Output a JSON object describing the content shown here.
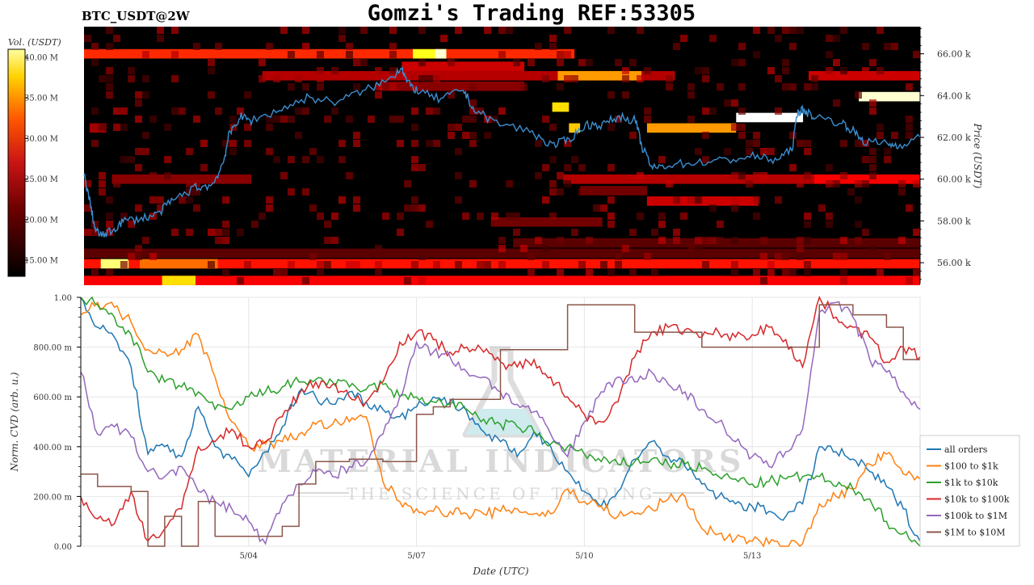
{
  "header": {
    "symbol": "BTC_USDT@2W",
    "title": "Gomzi's Trading REF:53305"
  },
  "watermark": {
    "brand": "MATERIAL INDICATORS",
    "tagline": "THE SCIENCE OF TRADING"
  },
  "chart_data": [
    {
      "type": "heatmap",
      "subtype": "orderbook-liquidity-heatmap-with-price-line",
      "colorbar": {
        "label": "Vol. (USDT)",
        "ticks": [
          "40.00 M",
          "35.00 M",
          "30.00 M",
          "25.00 M",
          "20.00 M",
          "15.00 M"
        ],
        "tick_values": [
          40,
          35,
          30,
          25,
          20,
          15
        ],
        "range": [
          13,
          41
        ],
        "colormap": "hot"
      },
      "y_axis": {
        "label": "Price (USDT)",
        "side": "right",
        "ticks": [
          "66.00 k",
          "64.00 k",
          "62.00 k",
          "60.00 k",
          "58.00 k",
          "56.00 k"
        ],
        "tick_values": [
          66000,
          64000,
          62000,
          60000,
          58000,
          56000
        ],
        "ylim": [
          55000,
          67300
        ]
      },
      "x_range_days": [
        0,
        15
      ],
      "liquidity_bands": [
        {
          "price": 66000,
          "x0": 0.0,
          "x1": 8.8,
          "vol": 26
        },
        {
          "price": 66000,
          "x0": 5.9,
          "x1": 6.5,
          "vol": 36
        },
        {
          "price": 66000,
          "x0": 6.3,
          "x1": 6.5,
          "vol": 40
        },
        {
          "price": 65400,
          "x0": 5.7,
          "x1": 7.9,
          "vol": 22
        },
        {
          "price": 64950,
          "x0": 3.2,
          "x1": 10.6,
          "vol": 21
        },
        {
          "price": 64950,
          "x0": 8.5,
          "x1": 10.0,
          "vol": 31
        },
        {
          "price": 64950,
          "x0": 13.0,
          "x1": 15.0,
          "vol": 22
        },
        {
          "price": 64450,
          "x0": 5.3,
          "x1": 7.9,
          "vol": 19
        },
        {
          "price": 63950,
          "x0": 13.9,
          "x1": 15.0,
          "vol": 40
        },
        {
          "price": 63450,
          "x0": 8.4,
          "x1": 8.7,
          "vol": 34
        },
        {
          "price": 62950,
          "x0": 11.7,
          "x1": 12.9,
          "vol": 41
        },
        {
          "price": 62450,
          "x0": 10.1,
          "x1": 11.7,
          "vol": 31
        },
        {
          "price": 62450,
          "x0": 8.7,
          "x1": 8.9,
          "vol": 33
        },
        {
          "price": 62450,
          "x0": 0.1,
          "x1": 0.4,
          "vol": 20
        },
        {
          "price": 60000,
          "x0": 0.5,
          "x1": 3.0,
          "vol": 19
        },
        {
          "price": 60000,
          "x0": 8.6,
          "x1": 15.0,
          "vol": 21
        },
        {
          "price": 60000,
          "x0": 13.1,
          "x1": 15.0,
          "vol": 24
        },
        {
          "price": 59450,
          "x0": 8.9,
          "x1": 10.1,
          "vol": 18
        },
        {
          "price": 58950,
          "x0": 10.1,
          "x1": 12.1,
          "vol": 22
        },
        {
          "price": 57950,
          "x0": 7.3,
          "x1": 9.3,
          "vol": 18
        },
        {
          "price": 56950,
          "x0": 7.7,
          "x1": 15.0,
          "vol": 17
        },
        {
          "price": 56450,
          "x0": 0.0,
          "x1": 15.0,
          "vol": 17
        },
        {
          "price": 55950,
          "x0": 0.0,
          "x1": 15.0,
          "vol": 25
        },
        {
          "price": 55950,
          "x0": 0.3,
          "x1": 0.8,
          "vol": 38
        },
        {
          "price": 55950,
          "x0": 1.0,
          "x1": 2.4,
          "vol": 29
        },
        {
          "price": 55150,
          "x0": 0.0,
          "x1": 15.0,
          "vol": 24
        },
        {
          "price": 55150,
          "x0": 1.4,
          "x1": 2.0,
          "vol": 34
        }
      ],
      "price_series": {
        "name": "price",
        "color": "#1f77b4",
        "x": [
          0,
          0.1,
          0.2,
          0.3,
          0.5,
          0.7,
          1.0,
          1.3,
          1.6,
          2.0,
          2.3,
          2.5,
          2.6,
          2.8,
          3.0,
          3.5,
          4.0,
          4.5,
          5.0,
          5.5,
          5.7,
          5.8,
          6.0,
          6.4,
          6.8,
          7.0,
          7.4,
          8.0,
          8.4,
          8.7,
          9.0,
          9.3,
          9.6,
          9.9,
          10.0,
          10.2,
          10.5,
          11.0,
          11.5,
          12.0,
          12.4,
          12.7,
          12.8,
          12.9,
          13.1,
          13.6,
          13.8,
          14.0,
          14.4,
          14.6,
          15.0
        ],
        "y": [
          60200,
          59000,
          57600,
          57300,
          57500,
          58000,
          58100,
          58300,
          59000,
          59600,
          59700,
          60800,
          62100,
          63000,
          62800,
          63300,
          63900,
          63700,
          64200,
          64800,
          65400,
          64600,
          64200,
          63800,
          64300,
          63300,
          62700,
          62300,
          61600,
          61900,
          62600,
          62600,
          63000,
          62800,
          61600,
          60500,
          60700,
          60800,
          60900,
          61100,
          60900,
          61400,
          63200,
          63300,
          63000,
          62700,
          62300,
          61800,
          61700,
          61600,
          62000
        ]
      }
    },
    {
      "type": "line",
      "y_axis": {
        "label": "Norm. CVD (arb. u.)",
        "ticks": [
          "1.00",
          "800.00 m",
          "600.00 m",
          "400.00 m",
          "200.00 m",
          "0.00"
        ],
        "tick_values": [
          1.0,
          0.8,
          0.6,
          0.4,
          0.2,
          0.0
        ],
        "ylim": [
          0,
          1
        ]
      },
      "x_axis": {
        "label": "Date (UTC)",
        "ticks": [
          "5/04",
          "5/07",
          "5/10",
          "5/13"
        ],
        "tick_days": [
          3,
          6,
          9,
          12
        ],
        "xlim_days": [
          0,
          15
        ]
      },
      "grid": true,
      "legend_position": "right",
      "x": [
        0,
        0.3,
        0.6,
        0.9,
        1.2,
        1.5,
        1.8,
        2.1,
        2.4,
        2.7,
        3.0,
        3.3,
        3.6,
        3.9,
        4.2,
        4.5,
        4.8,
        5.1,
        5.4,
        5.7,
        6.0,
        6.3,
        6.6,
        6.9,
        7.2,
        7.5,
        7.8,
        8.1,
        8.4,
        8.7,
        9.0,
        9.3,
        9.6,
        9.9,
        10.2,
        10.5,
        10.8,
        11.1,
        11.4,
        11.7,
        12.0,
        12.3,
        12.6,
        12.9,
        13.2,
        13.5,
        13.8,
        14.1,
        14.4,
        14.7,
        15.0
      ],
      "series": [
        {
          "name": "all orders",
          "color": "#1f77b4",
          "values": [
            1.0,
            0.88,
            0.84,
            0.72,
            0.37,
            0.4,
            0.36,
            0.56,
            0.4,
            0.35,
            0.28,
            0.38,
            0.48,
            0.62,
            0.6,
            0.57,
            0.62,
            0.58,
            0.55,
            0.52,
            0.56,
            0.6,
            0.58,
            0.54,
            0.46,
            0.42,
            0.36,
            0.46,
            0.4,
            0.3,
            0.22,
            0.16,
            0.22,
            0.35,
            0.42,
            0.36,
            0.32,
            0.25,
            0.2,
            0.17,
            0.16,
            0.14,
            0.12,
            0.17,
            0.4,
            0.38,
            0.35,
            0.3,
            0.24,
            0.15,
            0.02
          ]
        },
        {
          "name": "$100 to $1k",
          "color": "#ff7f0e",
          "values": [
            0.93,
            0.98,
            0.96,
            0.9,
            0.79,
            0.78,
            0.79,
            0.85,
            0.68,
            0.5,
            0.4,
            0.41,
            0.42,
            0.45,
            0.49,
            0.49,
            0.5,
            0.52,
            0.26,
            0.18,
            0.15,
            0.14,
            0.14,
            0.13,
            0.13,
            0.14,
            0.15,
            0.13,
            0.13,
            0.23,
            0.18,
            0.16,
            0.12,
            0.13,
            0.15,
            0.19,
            0.2,
            0.07,
            0.05,
            0.03,
            0.02,
            0.01,
            0.0,
            0.01,
            0.17,
            0.2,
            0.23,
            0.33,
            0.37,
            0.29,
            0.27
          ]
        },
        {
          "name": "$1k to $10k",
          "color": "#2ca02c",
          "values": [
            1.0,
            0.97,
            0.92,
            0.85,
            0.7,
            0.66,
            0.64,
            0.62,
            0.55,
            0.55,
            0.6,
            0.62,
            0.64,
            0.66,
            0.67,
            0.66,
            0.64,
            0.63,
            0.65,
            0.6,
            0.6,
            0.58,
            0.57,
            0.55,
            0.51,
            0.49,
            0.48,
            0.46,
            0.41,
            0.4,
            0.37,
            0.34,
            0.33,
            0.34,
            0.35,
            0.33,
            0.33,
            0.31,
            0.28,
            0.27,
            0.25,
            0.26,
            0.27,
            0.28,
            0.28,
            0.24,
            0.23,
            0.19,
            0.1,
            0.05,
            0.0
          ]
        },
        {
          "name": "$10k to $100k",
          "color": "#d62728",
          "values": [
            0.2,
            0.11,
            0.09,
            0.22,
            0.02,
            0.07,
            0.15,
            0.4,
            0.42,
            0.47,
            0.4,
            0.42,
            0.52,
            0.61,
            0.66,
            0.65,
            0.6,
            0.58,
            0.66,
            0.82,
            0.86,
            0.83,
            0.78,
            0.8,
            0.78,
            0.74,
            0.72,
            0.75,
            0.68,
            0.6,
            0.53,
            0.5,
            0.58,
            0.76,
            0.86,
            0.88,
            0.87,
            0.84,
            0.86,
            0.84,
            0.85,
            0.88,
            0.83,
            0.72,
            1.0,
            0.92,
            0.88,
            0.84,
            0.74,
            0.8,
            0.76
          ]
        },
        {
          "name": "$100k to $1M",
          "color": "#9467bd",
          "values": [
            0.7,
            0.45,
            0.48,
            0.44,
            0.3,
            0.28,
            0.32,
            0.22,
            0.18,
            0.15,
            0.1,
            0.01,
            0.17,
            0.25,
            0.3,
            0.28,
            0.32,
            0.34,
            0.45,
            0.6,
            0.82,
            0.78,
            0.76,
            0.7,
            0.68,
            0.62,
            0.57,
            0.54,
            0.45,
            0.36,
            0.5,
            0.62,
            0.68,
            0.66,
            0.7,
            0.65,
            0.62,
            0.55,
            0.5,
            0.42,
            0.36,
            0.32,
            0.38,
            0.47,
            0.94,
            0.98,
            0.92,
            0.75,
            0.7,
            0.62,
            0.55
          ]
        },
        {
          "name": "$1M to $10M",
          "color": "#8c564b",
          "values": [
            0.29,
            0.24,
            0.24,
            0.22,
            0.0,
            0.12,
            0.0,
            0.18,
            0.04,
            0.04,
            0.04,
            0.04,
            0.08,
            0.25,
            0.34,
            0.34,
            0.35,
            0.35,
            0.34,
            0.34,
            0.53,
            0.56,
            0.59,
            0.59,
            0.59,
            0.79,
            0.79,
            0.79,
            0.79,
            0.97,
            0.97,
            0.97,
            0.97,
            0.86,
            0.86,
            0.86,
            0.86,
            0.8,
            0.8,
            0.8,
            0.8,
            0.8,
            0.8,
            0.8,
            0.97,
            0.97,
            0.93,
            0.93,
            0.88,
            0.75,
            0.75
          ]
        }
      ]
    }
  ]
}
